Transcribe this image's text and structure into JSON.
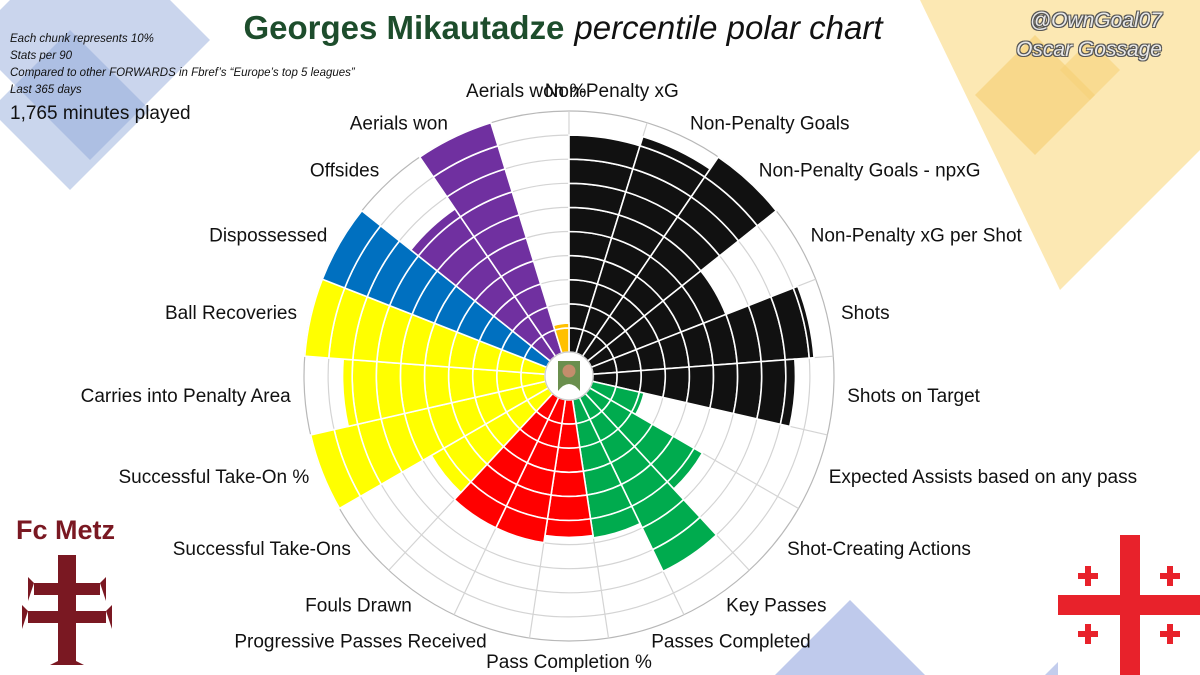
{
  "title": {
    "player": "Georges Mikautadze",
    "subtitle": "percentile polar chart"
  },
  "notes": [
    "Each chunk represents 10%",
    "Stats per 90",
    "Compared to other FORWARDS in Fbref’s “Europe’s top 5 leagues”",
    "Last 365 days"
  ],
  "minutes_played": "1,765 minutes played",
  "credit": {
    "handle": "@OwnGoal07",
    "name": "Oscar Gossage"
  },
  "club": {
    "name": "Fc Metz",
    "logo_color": "#7a1822"
  },
  "flag": {
    "country_icon": "georgia-flag-icon",
    "cross_color": "#e8222b"
  },
  "player_photo_icon": "player-photo-icon",
  "colors": {
    "attacking": "#111111",
    "creation": "#00ab4e",
    "passing": "#ff0000",
    "possession": "#ffff00",
    "recovery": "#0070c0",
    "defensive": "#7030a0",
    "aerial": "#ffc000"
  },
  "chart_data": {
    "type": "polar-bar",
    "scale": "percentile",
    "rmax": 100,
    "ring_step": 10,
    "grid": true,
    "categories": [
      {
        "label": "Non-Penalty xG",
        "value": 90,
        "group": "attacking"
      },
      {
        "label": "Non-Penalty Goals",
        "value": 94,
        "group": "attacking"
      },
      {
        "label": "Non-Penalty Goals - npxG",
        "value": 100,
        "group": "attacking"
      },
      {
        "label": "Non-Penalty xG per Shot",
        "value": 60,
        "group": "attacking"
      },
      {
        "label": "Shots",
        "value": 92,
        "group": "attacking"
      },
      {
        "label": "Shots on Target",
        "value": 84,
        "group": "attacking"
      },
      {
        "label": "Expected Assists based on any pass",
        "value": 22,
        "group": "creation"
      },
      {
        "label": "Shot-Creating Actions",
        "value": 54,
        "group": "creation"
      },
      {
        "label": "Key Passes",
        "value": 80,
        "group": "creation"
      },
      {
        "label": "Passes Completed",
        "value": 58,
        "group": "creation"
      },
      {
        "label": "Pass Completion %",
        "value": 57,
        "group": "passing"
      },
      {
        "label": "Progressive Passes Received",
        "value": 60,
        "group": "passing"
      },
      {
        "label": "Fouls Drawn",
        "value": 60,
        "group": "passing"
      },
      {
        "label": "Successful Take-Ons",
        "value": 56,
        "group": "possession"
      },
      {
        "label": "Successful Take-On %",
        "value": 100,
        "group": "possession"
      },
      {
        "label": "Carries into Penalty Area",
        "value": 84,
        "group": "possession"
      },
      {
        "label": "Ball Recoveries",
        "value": 100,
        "group": "possession"
      },
      {
        "label": "Dispossessed",
        "value": 100,
        "group": "recovery"
      },
      {
        "label": "Offsides",
        "value": 74,
        "group": "defensive"
      },
      {
        "label": "Aerials won",
        "value": 100,
        "group": "defensive"
      },
      {
        "label": "Aerials won %",
        "value": 12,
        "group": "aerial"
      }
    ]
  }
}
